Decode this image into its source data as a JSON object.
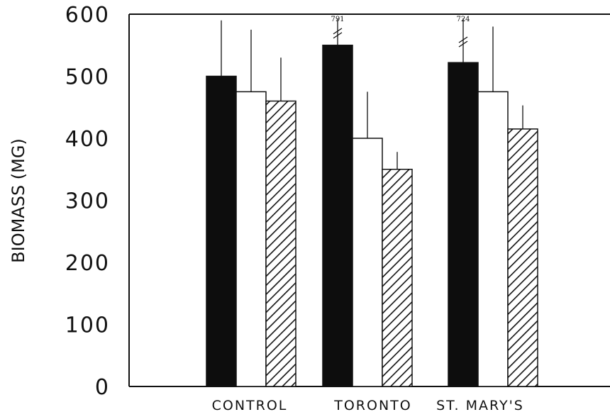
{
  "chart_data": {
    "type": "bar",
    "title": "",
    "xlabel": "",
    "ylabel": "BIOMASS (MG)",
    "ylim": [
      0,
      600
    ],
    "yticks": [
      "0",
      "100",
      "200",
      "300",
      "400",
      "500",
      "600"
    ],
    "categories": [
      "CONTROL",
      "TORONTO",
      "ST. MARY'S"
    ],
    "series": [
      {
        "fill": "solid-black",
        "values": [
          500,
          791,
          724
        ],
        "error_upper": [
          590,
          null,
          null
        ]
      },
      {
        "fill": "white",
        "values": [
          475,
          400,
          475
        ],
        "error_upper": [
          575,
          475,
          580
        ]
      },
      {
        "fill": "diagonal-hatch",
        "values": [
          460,
          350,
          415
        ],
        "error_upper": [
          530,
          378,
          453
        ]
      }
    ],
    "axis_break": {
      "displayed_top": [
        550,
        522
      ],
      "labels": [
        "791",
        "724"
      ]
    },
    "grid": false,
    "legend": "none"
  }
}
